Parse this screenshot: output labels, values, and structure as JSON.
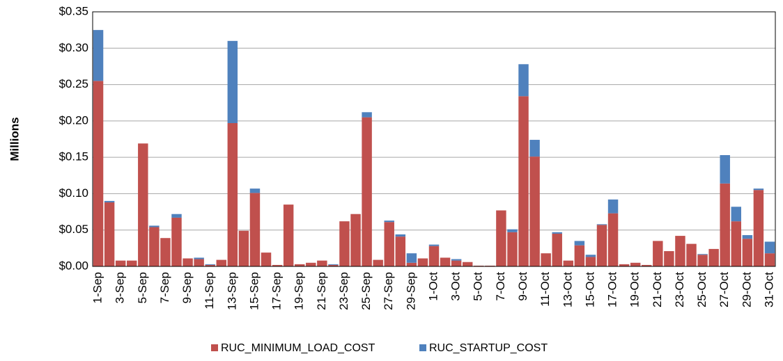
{
  "chart_data": {
    "type": "stacked_bar",
    "y_label": "Millions",
    "categories": [
      "1-Sep",
      null,
      "3-Sep",
      null,
      "5-Sep",
      null,
      "7-Sep",
      null,
      "9-Sep",
      null,
      "11-Sep",
      null,
      "13-Sep",
      null,
      "15-Sep",
      null,
      "17-Sep",
      null,
      "19-Sep",
      null,
      "21-Sep",
      null,
      "23-Sep",
      null,
      "25-Sep",
      null,
      "27-Sep",
      null,
      "29-Sep",
      null,
      "1-Oct",
      null,
      "3-Oct",
      null,
      "5-Oct",
      null,
      "7-Oct",
      null,
      "9-Oct",
      null,
      "11-Oct",
      null,
      "13-Oct",
      null,
      "15-Oct",
      null,
      "17-Oct",
      null,
      "19-Oct",
      null,
      "21-Oct",
      null,
      "23-Oct",
      null,
      "25-Oct",
      null,
      "27-Oct",
      null,
      "29-Oct",
      null,
      "31-Oct"
    ],
    "series": [
      {
        "name": "RUC_MINIMUM_LOAD_COST",
        "color": "#c0504d",
        "values": [
          0.255,
          0.088,
          0.008,
          0.008,
          0.169,
          0.054,
          0.039,
          0.067,
          0.011,
          0.01,
          0.002,
          0.009,
          0.197,
          0.049,
          0.101,
          0.019,
          0.002,
          0.085,
          0.003,
          0.005,
          0.008,
          0.002,
          0.062,
          0.072,
          0.205,
          0.009,
          0.061,
          0.041,
          0.005,
          0.011,
          0.028,
          0.012,
          0.008,
          0.006,
          0.001,
          0.001,
          0.077,
          0.047,
          0.234,
          0.151,
          0.018,
          0.045,
          0.008,
          0.029,
          0.013,
          0.057,
          0.073,
          0.003,
          0.005,
          0.002,
          0.035,
          0.021,
          0.042,
          0.031,
          0.016,
          0.024,
          0.114,
          0.062,
          0.038,
          0.105,
          0.018
        ]
      },
      {
        "name": "RUC_STARTUP_COST",
        "color": "#4f81bd",
        "values": [
          0.07,
          0.002,
          0,
          0,
          0,
          0.002,
          0,
          0.005,
          0,
          0.002,
          0.001,
          0,
          0.113,
          0,
          0.006,
          0,
          0,
          0,
          0,
          0,
          0,
          0.001,
          0,
          0,
          0.007,
          0,
          0.002,
          0.003,
          0.013,
          0,
          0.002,
          0,
          0.002,
          0,
          0,
          0,
          0,
          0.004,
          0.044,
          0.023,
          0,
          0.002,
          0,
          0.006,
          0.003,
          0.001,
          0.019,
          0,
          0,
          0,
          0,
          0,
          0,
          0,
          0.001,
          0,
          0.039,
          0.02,
          0.005,
          0.002,
          0.016
        ]
      }
    ],
    "ylim": [
      0,
      0.35
    ],
    "yticks": [
      {
        "value": 0,
        "label": "$0.00"
      },
      {
        "value": 0.05,
        "label": "$0.05"
      },
      {
        "value": 0.1,
        "label": "$0.10"
      },
      {
        "value": 0.15,
        "label": "$0.15"
      },
      {
        "value": 0.2,
        "label": "$0.20"
      },
      {
        "value": 0.25,
        "label": "$0.25"
      },
      {
        "value": 0.3,
        "label": "$0.30"
      },
      {
        "value": 0.35,
        "label": "$0.35"
      }
    ],
    "grid": true,
    "legend": "bottom"
  }
}
